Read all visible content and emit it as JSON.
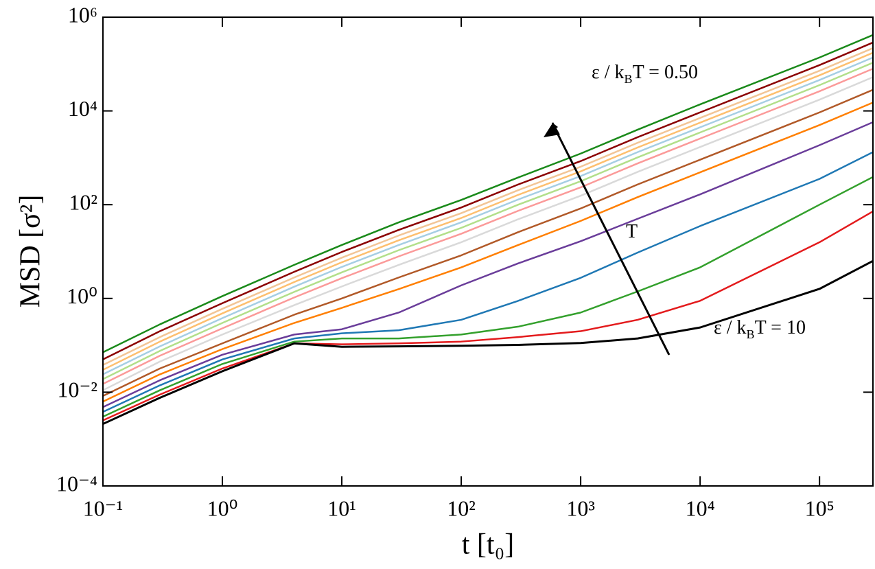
{
  "chart_data": {
    "type": "line",
    "x_label": "t [t₀]",
    "y_label": "MSD [σ²]",
    "log_x": true,
    "log_y": true,
    "x": [
      0.1,
      0.3,
      1,
      4,
      10,
      30,
      100,
      300,
      1000,
      3000,
      10000,
      100000,
      280000
    ],
    "xlim": [
      0.1,
      280000
    ],
    "ylim": [
      0.0001,
      1000000
    ],
    "xticks": [
      {
        "value": 0.1,
        "label": "10⁻¹"
      },
      {
        "value": 1,
        "label": "10⁰"
      },
      {
        "value": 10,
        "label": "10¹"
      },
      {
        "value": 100,
        "label": "10²"
      },
      {
        "value": 1000,
        "label": "10³"
      },
      {
        "value": 10000,
        "label": "10⁴"
      },
      {
        "value": 100000,
        "label": "10⁵"
      }
    ],
    "yticks": [
      {
        "value": 0.0001,
        "label": "10⁻⁴"
      },
      {
        "value": 0.01,
        "label": "10⁻²"
      },
      {
        "value": 1,
        "label": "10⁰"
      },
      {
        "value": 100,
        "label": "10²"
      },
      {
        "value": 10000,
        "label": "10⁴"
      },
      {
        "value": 1000000,
        "label": "10⁶"
      }
    ],
    "series": [
      {
        "color": "#1a8a1a",
        "values": [
          0.071,
          0.28,
          1.12,
          5.2,
          13.8,
          42,
          126,
          380,
          1230,
          3980,
          13800,
          138000,
          417000
        ]
      },
      {
        "color": "#8b0000",
        "values": [
          0.05,
          0.2,
          0.79,
          3.7,
          9.8,
          29,
          87,
          270,
          850,
          2750,
          9300,
          95000,
          288000
        ]
      },
      {
        "color": "#f2c596",
        "values": [
          0.038,
          0.15,
          0.6,
          2.8,
          7.4,
          22,
          66,
          204,
          645,
          2090,
          7080,
          72000,
          219000
        ]
      },
      {
        "color": "#fdbf6f",
        "values": [
          0.03,
          0.12,
          0.48,
          2.24,
          5.9,
          17.4,
          52,
          162,
          513,
          1660,
          5620,
          57500,
          174000
        ]
      },
      {
        "color": "#a6cee3",
        "values": [
          0.024,
          0.095,
          0.38,
          1.78,
          4.7,
          13.8,
          42,
          129,
          407,
          1320,
          4470,
          45700,
          138000
        ]
      },
      {
        "color": "#b2df8a",
        "values": [
          0.019,
          0.076,
          0.3,
          1.38,
          3.6,
          10.7,
          32,
          100,
          316,
          1020,
          3470,
          35500,
          107000
        ]
      },
      {
        "color": "#fb9a99",
        "values": [
          0.015,
          0.06,
          0.23,
          1.05,
          2.7,
          7.9,
          24,
          74,
          234,
          760,
          2570,
          26300,
          79400
        ]
      },
      {
        "color": "#d9d9d9",
        "values": [
          0.011,
          0.045,
          0.17,
          0.72,
          1.8,
          5.2,
          15.8,
          49,
          155,
          500,
          1700,
          17400,
          52500
        ]
      },
      {
        "color": "#b15928",
        "values": [
          0.0083,
          0.032,
          0.11,
          0.45,
          1.0,
          2.8,
          8.3,
          26,
          83,
          270,
          910,
          9300,
          28200
        ]
      },
      {
        "color": "#ff7f00",
        "values": [
          0.0063,
          0.024,
          0.083,
          0.3,
          0.63,
          1.58,
          4.6,
          13.8,
          45,
          145,
          490,
          5000,
          15100
        ]
      },
      {
        "color": "#6a3d9a",
        "values": [
          0.0048,
          0.018,
          0.063,
          0.17,
          0.22,
          0.5,
          1.9,
          5.6,
          16.6,
          50,
          166,
          1860,
          5750
        ]
      },
      {
        "color": "#1f78b4",
        "values": [
          0.0038,
          0.014,
          0.05,
          0.14,
          0.18,
          0.21,
          0.35,
          0.89,
          2.75,
          9.5,
          35,
          355,
          1320
        ]
      },
      {
        "color": "#33a02c",
        "values": [
          0.003,
          0.011,
          0.04,
          0.12,
          0.14,
          0.14,
          0.17,
          0.25,
          0.5,
          1.41,
          4.6,
          100,
          390
        ]
      },
      {
        "color": "#e31a1c",
        "values": [
          0.0025,
          0.0089,
          0.032,
          0.11,
          0.105,
          0.11,
          0.12,
          0.15,
          0.2,
          0.35,
          0.89,
          15.8,
          72
        ]
      },
      {
        "color": "#000000",
        "values": [
          0.0021,
          0.0076,
          0.028,
          0.11,
          0.093,
          0.095,
          0.098,
          0.102,
          0.112,
          0.14,
          0.24,
          1.6,
          6.3
        ]
      }
    ],
    "annotations": [
      {
        "parts": [
          "ε  / k",
          "B",
          "T = 0.50"
        ]
      },
      {
        "parts": [
          "ε / k",
          "B",
          "T = 10"
        ]
      },
      {
        "parts": [
          "T"
        ]
      }
    ]
  }
}
